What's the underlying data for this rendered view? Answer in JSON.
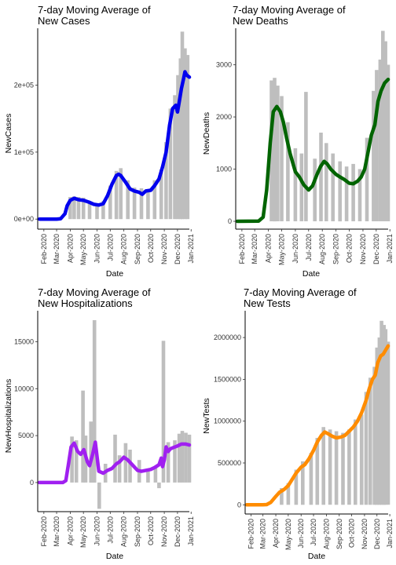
{
  "chart_data": [
    {
      "type": "bar",
      "title_line1": "7-day Moving Average of",
      "title_line2": "New Cases",
      "xlabel": "Date",
      "ylabel": "NewCases",
      "line_color": "#0000ee",
      "bar_color": "#bebebe",
      "x_ticks": [
        "Feb-2020",
        "Mar-2020",
        "Apr-2020",
        "May-2020",
        "Jun-2020",
        "Jul-2020",
        "Aug-2020",
        "Sep-2020",
        "Oct-2020",
        "Nov-2020",
        "Dec-2020",
        "Jan-2021"
      ],
      "y_ticks": [
        {
          "value": 0,
          "label": "0e+00"
        },
        {
          "value": 100000,
          "label": "1e+05"
        },
        {
          "value": 200000,
          "label": "2e+05"
        }
      ],
      "ylim": [
        -15000,
        285000
      ],
      "xlim_days": [
        -4,
        341
      ],
      "series_dates": [
        "2020-01-22",
        "2020-03-01",
        "2020-03-10",
        "2020-03-20",
        "2020-03-25",
        "2020-04-01",
        "2020-04-10",
        "2020-04-20",
        "2020-05-01",
        "2020-05-15",
        "2020-05-25",
        "2020-06-05",
        "2020-06-15",
        "2020-06-25",
        "2020-07-05",
        "2020-07-15",
        "2020-07-20",
        "2020-07-25",
        "2020-08-05",
        "2020-08-15",
        "2020-08-25",
        "2020-09-05",
        "2020-09-12",
        "2020-09-20",
        "2020-10-01",
        "2020-10-10",
        "2020-10-20",
        "2020-10-28",
        "2020-11-05",
        "2020-11-13",
        "2020-11-20",
        "2020-11-27",
        "2020-12-01",
        "2020-12-05",
        "2020-12-10",
        "2020-12-15",
        "2020-12-18",
        "2020-12-22",
        "2020-12-28"
      ],
      "series_values": [
        0,
        0,
        500,
        8000,
        20000,
        28000,
        31000,
        29000,
        28000,
        25000,
        22000,
        21000,
        23000,
        35000,
        52000,
        65000,
        67000,
        65000,
        55000,
        45000,
        42000,
        40000,
        37000,
        42000,
        43000,
        50000,
        60000,
        78000,
        100000,
        140000,
        165000,
        170000,
        160000,
        175000,
        195000,
        210000,
        220000,
        215000,
        212000
      ],
      "bar_dates": [
        "2020-04-01",
        "2020-04-10",
        "2020-04-20",
        "2020-05-01",
        "2020-05-15",
        "2020-06-01",
        "2020-06-15",
        "2020-07-01",
        "2020-07-15",
        "2020-07-25",
        "2020-08-10",
        "2020-08-25",
        "2020-09-10",
        "2020-09-25",
        "2020-10-10",
        "2020-10-25",
        "2020-11-05",
        "2020-11-15",
        "2020-11-25",
        "2020-12-02",
        "2020-12-08",
        "2020-12-12",
        "2020-12-18",
        "2020-12-24"
      ],
      "bar_values": [
        33000,
        34000,
        33000,
        32000,
        26000,
        23000,
        27000,
        50000,
        72000,
        76000,
        58000,
        47000,
        46000,
        44000,
        58000,
        74000,
        115000,
        165000,
        185000,
        215000,
        240000,
        280000,
        255000,
        245000
      ]
    },
    {
      "type": "bar",
      "title_line1": "7-day Moving Average of",
      "title_line2": "New Deaths",
      "xlabel": "Date",
      "ylabel": "NewDeaths",
      "line_color": "#006400",
      "bar_color": "#bebebe",
      "x_ticks": [
        "Feb-2020",
        "Mar-2020",
        "Apr-2020",
        "May-2020",
        "Jun-2020",
        "Jul-2020",
        "Aug-2020",
        "Sep-2020",
        "Oct-2020",
        "Nov-2020",
        "Dec-2020",
        "Jan-2021"
      ],
      "y_ticks": [
        {
          "value": 0,
          "label": "0"
        },
        {
          "value": 1000,
          "label": "1000"
        },
        {
          "value": 2000,
          "label": "2000"
        },
        {
          "value": 3000,
          "label": "3000"
        }
      ],
      "ylim": [
        -150,
        3700
      ],
      "xlim_days": [
        -4,
        341
      ],
      "series_dates": [
        "2020-01-22",
        "2020-03-10",
        "2020-03-20",
        "2020-03-28",
        "2020-04-05",
        "2020-04-12",
        "2020-04-20",
        "2020-04-28",
        "2020-05-05",
        "2020-05-12",
        "2020-05-20",
        "2020-06-01",
        "2020-06-10",
        "2020-06-20",
        "2020-07-01",
        "2020-07-10",
        "2020-07-20",
        "2020-07-28",
        "2020-08-05",
        "2020-08-12",
        "2020-08-20",
        "2020-09-01",
        "2020-09-10",
        "2020-09-20",
        "2020-10-01",
        "2020-10-10",
        "2020-10-20",
        "2020-10-28",
        "2020-11-05",
        "2020-11-12",
        "2020-11-20",
        "2020-11-28",
        "2020-12-05",
        "2020-12-12",
        "2020-12-20",
        "2020-12-28"
      ],
      "series_values": [
        0,
        5,
        80,
        600,
        1500,
        2100,
        2200,
        2100,
        1900,
        1600,
        1300,
        950,
        850,
        700,
        600,
        680,
        900,
        1050,
        1150,
        1100,
        1000,
        900,
        850,
        800,
        730,
        720,
        770,
        850,
        1000,
        1300,
        1650,
        1850,
        2300,
        2500,
        2650,
        2720
      ],
      "bar_dates": [
        "2020-04-08",
        "2020-04-15",
        "2020-04-22",
        "2020-05-01",
        "2020-05-15",
        "2020-06-01",
        "2020-06-15",
        "2020-06-25",
        "2020-07-15",
        "2020-07-29",
        "2020-08-10",
        "2020-08-25",
        "2020-09-10",
        "2020-09-25",
        "2020-10-10",
        "2020-10-25",
        "2020-11-10",
        "2020-11-25",
        "2020-12-02",
        "2020-12-10",
        "2020-12-16",
        "2020-12-22",
        "2020-12-28"
      ],
      "bar_values": [
        2700,
        2750,
        2600,
        2400,
        1900,
        1400,
        1300,
        2480,
        1200,
        1700,
        1500,
        1300,
        1150,
        1050,
        1100,
        1000,
        1600,
        2500,
        2900,
        3100,
        3650,
        3450,
        3000
      ]
    },
    {
      "type": "bar",
      "title_line1": "7-day Moving Average of",
      "title_line2": "New Hospitalizations",
      "xlabel": "Date",
      "ylabel": "NewHospitalizations",
      "line_color": "#a020f0",
      "bar_color": "#bebebe",
      "x_ticks": [
        "Feb-2020",
        "Mar-2020",
        "Apr-2020",
        "May-2020",
        "Jun-2020",
        "Jul-2020",
        "Aug-2020",
        "Sep-2020",
        "Oct-2020",
        "Nov-2020",
        "Dec-2020",
        "Jan-2021"
      ],
      "y_ticks": [
        {
          "value": 0,
          "label": "0"
        },
        {
          "value": 5000,
          "label": "5000"
        },
        {
          "value": 10000,
          "label": "10000"
        },
        {
          "value": 15000,
          "label": "15000"
        }
      ],
      "ylim": [
        -3100,
        18300
      ],
      "xlim_days": [
        -4,
        341
      ],
      "series_dates": [
        "2020-01-22",
        "2020-03-15",
        "2020-03-22",
        "2020-03-28",
        "2020-04-03",
        "2020-04-10",
        "2020-04-18",
        "2020-04-25",
        "2020-05-02",
        "2020-05-10",
        "2020-05-15",
        "2020-05-22",
        "2020-05-28",
        "2020-06-05",
        "2020-06-15",
        "2020-06-25",
        "2020-07-05",
        "2020-07-15",
        "2020-07-22",
        "2020-08-01",
        "2020-08-10",
        "2020-08-20",
        "2020-09-01",
        "2020-09-10",
        "2020-09-20",
        "2020-10-01",
        "2020-10-10",
        "2020-10-20",
        "2020-10-25",
        "2020-10-28",
        "2020-11-01",
        "2020-11-05",
        "2020-11-10",
        "2020-11-15",
        "2020-11-20",
        "2020-12-01",
        "2020-12-10",
        "2020-12-20",
        "2020-12-28"
      ],
      "series_values": [
        0,
        0,
        200,
        2000,
        3800,
        4200,
        3300,
        3000,
        3500,
        2200,
        1800,
        3000,
        4300,
        1200,
        1000,
        1300,
        1500,
        2000,
        2200,
        2700,
        2400,
        1900,
        1300,
        1200,
        1300,
        1400,
        1600,
        1900,
        2600,
        1700,
        2400,
        3800,
        3300,
        3600,
        3700,
        3900,
        4100,
        4100,
        4000
      ],
      "bar_dates": [
        "2020-04-05",
        "2020-04-15",
        "2020-04-30",
        "2020-05-06",
        "2020-05-18",
        "2020-05-26",
        "2020-06-06",
        "2020-06-20",
        "2020-07-12",
        "2020-07-22",
        "2020-08-05",
        "2020-08-15",
        "2020-09-05",
        "2020-09-25",
        "2020-10-12",
        "2020-10-20",
        "2020-10-30",
        "2020-11-10",
        "2020-11-25",
        "2020-12-05",
        "2020-12-12",
        "2020-12-20",
        "2020-12-28"
      ],
      "bar_values": [
        4900,
        4500,
        9800,
        5000,
        6500,
        17300,
        -2800,
        2000,
        5100,
        2900,
        4200,
        3500,
        2400,
        1400,
        1600,
        -600,
        15100,
        4300,
        4500,
        5200,
        5500,
        5300,
        5100
      ]
    },
    {
      "type": "bar",
      "title_line1": "7-day Moving Average of",
      "title_line2": "New Tests",
      "xlabel": "Date",
      "ylabel": "NewTests",
      "line_color": "#ff8c00",
      "bar_color": "#bebebe",
      "x_ticks": [
        "Feb-2020",
        "Mar-2020",
        "Apr-2020",
        "May-2020",
        "Jun-2020",
        "Jul-2020",
        "Aug-2020",
        "Sep-2020",
        "Oct-2020",
        "Nov-2020",
        "Dec-2020",
        "Jan-2021"
      ],
      "y_ticks": [
        {
          "value": 0,
          "label": "0"
        },
        {
          "value": 500000,
          "label": "500000"
        },
        {
          "value": 1000000,
          "label": "1000000"
        },
        {
          "value": 1500000,
          "label": "1500000"
        },
        {
          "value": 2000000,
          "label": "2000000"
        }
      ],
      "ylim": [
        -110000,
        2320000
      ],
      "xlim_days": [
        -4,
        341
      ],
      "series_dates": [
        "2020-01-22",
        "2020-03-01",
        "2020-03-10",
        "2020-03-20",
        "2020-04-01",
        "2020-04-10",
        "2020-04-20",
        "2020-05-01",
        "2020-05-10",
        "2020-05-20",
        "2020-06-01",
        "2020-06-10",
        "2020-06-20",
        "2020-07-01",
        "2020-07-10",
        "2020-07-20",
        "2020-07-28",
        "2020-08-05",
        "2020-08-15",
        "2020-08-25",
        "2020-09-05",
        "2020-09-15",
        "2020-09-25",
        "2020-10-05",
        "2020-10-15",
        "2020-10-25",
        "2020-11-05",
        "2020-11-12",
        "2020-11-20",
        "2020-11-27",
        "2020-12-03",
        "2020-12-10",
        "2020-12-16",
        "2020-12-22",
        "2020-12-28"
      ],
      "series_values": [
        0,
        0,
        3000,
        30000,
        100000,
        150000,
        180000,
        230000,
        300000,
        380000,
        450000,
        480000,
        550000,
        650000,
        750000,
        830000,
        870000,
        850000,
        820000,
        800000,
        810000,
        830000,
        880000,
        930000,
        1000000,
        1100000,
        1250000,
        1380000,
        1500000,
        1550000,
        1700000,
        1780000,
        1800000,
        1850000,
        1900000
      ],
      "bar_dates": [
        "2020-04-15",
        "2020-05-01",
        "2020-05-20",
        "2020-06-05",
        "2020-06-25",
        "2020-07-10",
        "2020-07-25",
        "2020-08-10",
        "2020-08-25",
        "2020-09-10",
        "2020-09-25",
        "2020-10-10",
        "2020-10-25",
        "2020-11-05",
        "2020-11-15",
        "2020-11-25",
        "2020-12-01",
        "2020-12-07",
        "2020-12-12",
        "2020-12-18",
        "2020-12-22",
        "2020-12-28"
      ],
      "bar_values": [
        200000,
        260000,
        420000,
        520000,
        620000,
        800000,
        930000,
        900000,
        880000,
        860000,
        900000,
        1020000,
        1080000,
        1350000,
        1520000,
        1650000,
        1880000,
        2000000,
        2200000,
        2150000,
        2100000,
        1950000
      ]
    }
  ]
}
